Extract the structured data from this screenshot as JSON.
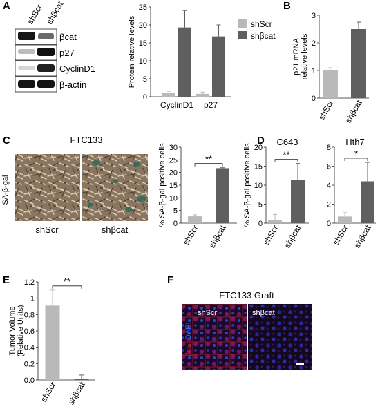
{
  "figure": {
    "panel_labels": {
      "A": "A",
      "B": "B",
      "C": "C",
      "D": "D",
      "E": "E",
      "F": "F"
    },
    "colors": {
      "light_bar": "#b9b9b9",
      "dark_bar": "#5f5f5f",
      "red": "#d21414",
      "blue": "#1a4fd8",
      "micro_green": "#2e6b5a"
    },
    "panel_a_blot": {
      "lanes": [
        "shScr",
        "shβcat"
      ],
      "bands": [
        "βcat",
        "p27",
        "CyclinD1",
        "β-actin"
      ]
    },
    "panel_c_images": {
      "title": "FTC133",
      "side_label": "SA-β-gal",
      "captions": [
        "shScr",
        "shβcat"
      ]
    },
    "panel_f_images": {
      "title": "FTC133 Graft",
      "left_label": "shScr",
      "right_label": "shβcat",
      "stain_red": "βcat",
      "stain_blue": "DAPI"
    }
  },
  "chart_data": [
    {
      "id": "A",
      "type": "bar",
      "categories": [
        "CyclinD1",
        "p27"
      ],
      "series": [
        {
          "name": "shScr",
          "values": [
            1.0,
            0.8
          ],
          "errors": [
            0.5,
            0.5
          ]
        },
        {
          "name": "shβcat",
          "values": [
            19.3,
            16.8
          ],
          "errors": [
            4.7,
            3.2
          ]
        }
      ],
      "ylabel": "Protein relative levels",
      "ylim": [
        0,
        25
      ],
      "yticks": [
        "0",
        "5",
        "10",
        "15",
        "20",
        "25"
      ],
      "legend": "top-right"
    },
    {
      "id": "B",
      "type": "bar",
      "categories": [
        "shScr",
        "shβcat"
      ],
      "values": [
        1.0,
        2.5
      ],
      "errors": [
        0.1,
        0.25
      ],
      "ylabel": "p21 mRNA relative levels",
      "ylabel_lines": [
        "p21 mRNA",
        "relative levels"
      ],
      "ylim": [
        0,
        3
      ],
      "yticks": [
        "0",
        "1",
        "2",
        "3"
      ]
    },
    {
      "id": "C",
      "type": "bar",
      "categories": [
        "shScr",
        "shβcat"
      ],
      "values": [
        2.7,
        21.7
      ],
      "errors": [
        0.6,
        0.2
      ],
      "ylabel": "% SA-β-gal positive cells",
      "ylim": [
        0,
        30
      ],
      "yticks": [
        "0",
        "5",
        "10",
        "15",
        "20",
        "25",
        "30"
      ],
      "significance": "**"
    },
    {
      "id": "D1",
      "type": "bar",
      "title": "C643",
      "categories": [
        "shScr",
        "shβcat"
      ],
      "values": [
        0.9,
        11.4
      ],
      "errors": [
        1.4,
        4.3
      ],
      "ylabel": "% SA-β-gal positive cells",
      "ylim": [
        0,
        20
      ],
      "yticks": [
        "0",
        "5",
        "10",
        "15",
        "20"
      ],
      "significance": "**"
    },
    {
      "id": "D2",
      "type": "bar",
      "title": "Hth7",
      "categories": [
        "shScr",
        "shβcat"
      ],
      "values": [
        0.7,
        4.4
      ],
      "errors": [
        0.4,
        2.0
      ],
      "ylim": [
        0,
        8
      ],
      "yticks": [
        "0",
        "2",
        "4",
        "6",
        "8"
      ],
      "significance": "*"
    },
    {
      "id": "E",
      "type": "bar",
      "categories": [
        "shScr",
        "shβcat"
      ],
      "values": [
        0.91,
        0.01
      ],
      "errors": [
        0.19,
        0.05
      ],
      "ylabel": "Tumor Volume (Relative Units)",
      "ylabel_lines": [
        "Tumor Volume",
        "(Relative Units)"
      ],
      "ylim": [
        0,
        1.2
      ],
      "yticks": [
        "0.0",
        "0.2",
        "0.4",
        "0.6",
        "0.8",
        "1",
        "1.2"
      ],
      "significance": "**"
    }
  ]
}
